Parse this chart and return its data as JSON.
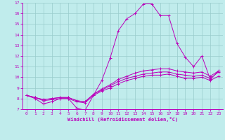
{
  "xlabel": "Windchill (Refroidissement éolien,°C)",
  "bg_color": "#c0ecec",
  "line_color": "#bb00bb",
  "grid_color": "#99cccc",
  "xmin": 0,
  "xmax": 23,
  "ymin": 7,
  "ymax": 17,
  "main_x": [
    0,
    1,
    2,
    3,
    4,
    5,
    6,
    7,
    8,
    9,
    10,
    11,
    12,
    13,
    14,
    15,
    16,
    17,
    18,
    19,
    20,
    21,
    22,
    23
  ],
  "main_y": [
    8.3,
    8.0,
    7.5,
    7.7,
    8.0,
    8.0,
    7.1,
    6.9,
    8.3,
    9.7,
    11.8,
    14.4,
    15.5,
    16.0,
    16.9,
    16.9,
    15.8,
    15.8,
    13.2,
    11.9,
    11.0,
    12.0,
    9.8,
    10.6
  ],
  "line2_y": [
    8.3,
    8.1,
    7.9,
    8.0,
    8.1,
    8.1,
    7.8,
    7.7,
    8.4,
    8.9,
    9.3,
    9.8,
    10.1,
    10.4,
    10.6,
    10.7,
    10.8,
    10.8,
    10.6,
    10.5,
    10.4,
    10.5,
    10.1,
    10.6
  ],
  "line3_y": [
    8.3,
    8.1,
    7.9,
    8.0,
    8.1,
    8.1,
    7.8,
    7.7,
    8.4,
    8.8,
    9.2,
    9.6,
    9.9,
    10.1,
    10.3,
    10.4,
    10.5,
    10.5,
    10.3,
    10.2,
    10.1,
    10.2,
    9.9,
    10.5
  ],
  "line4_y": [
    8.3,
    8.1,
    7.8,
    7.9,
    8.0,
    8.0,
    7.7,
    7.6,
    8.3,
    8.7,
    9.0,
    9.4,
    9.7,
    9.9,
    10.1,
    10.2,
    10.2,
    10.3,
    10.1,
    9.9,
    9.9,
    10.0,
    9.7,
    10.1
  ]
}
